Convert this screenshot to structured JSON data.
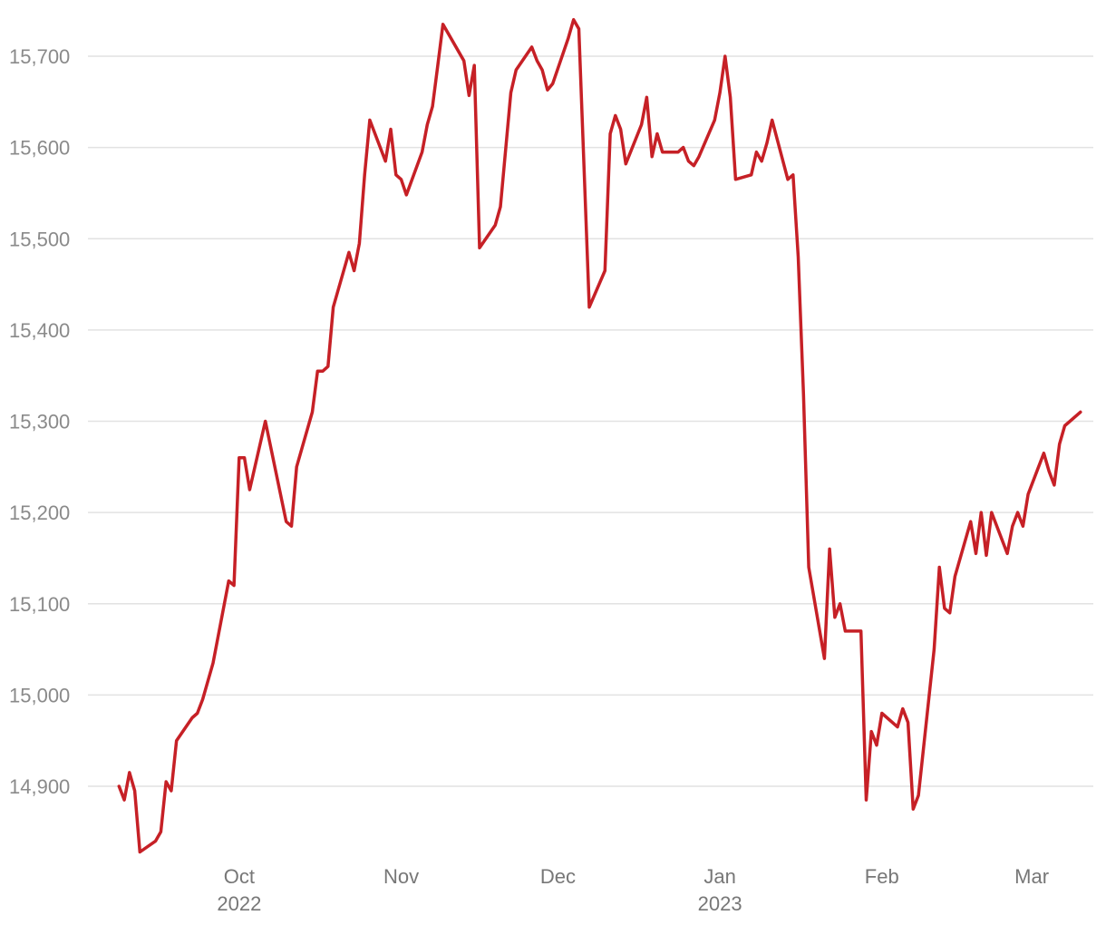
{
  "chart_data": {
    "type": "line",
    "title": "",
    "xlabel": "",
    "ylabel": "",
    "ylim": [
      14820,
      15745
    ],
    "xlim": [
      "2022-09-05",
      "2023-03-10"
    ],
    "grid": "horizontal",
    "legend": "none",
    "y_ticks": [
      "14,900",
      "15,000",
      "15,100",
      "15,200",
      "15,300",
      "15,400",
      "15,500",
      "15,600",
      "15,700"
    ],
    "y_tick_values": [
      14900,
      15000,
      15100,
      15200,
      15300,
      15400,
      15500,
      15600,
      15700
    ],
    "x_ticks": [
      {
        "date": "2022-10-01",
        "month": "Oct",
        "year": "2022"
      },
      {
        "date": "2022-11-01",
        "month": "Nov",
        "year": ""
      },
      {
        "date": "2022-12-01",
        "month": "Dec",
        "year": ""
      },
      {
        "date": "2023-01-01",
        "month": "Jan",
        "year": "2023"
      },
      {
        "date": "2023-02-01",
        "month": "Feb",
        "year": ""
      },
      {
        "date": "2023-03-01",
        "month": "Mar",
        "year": ""
      }
    ],
    "series": [
      {
        "color": "#c62026",
        "points": [
          [
            "2022-09-08",
            14900
          ],
          [
            "2022-09-09",
            14885
          ],
          [
            "2022-09-10",
            14915
          ],
          [
            "2022-09-11",
            14895
          ],
          [
            "2022-09-12",
            14828
          ],
          [
            "2022-09-15",
            14840
          ],
          [
            "2022-09-16",
            14850
          ],
          [
            "2022-09-17",
            14905
          ],
          [
            "2022-09-18",
            14895
          ],
          [
            "2022-09-19",
            14950
          ],
          [
            "2022-09-22",
            14975
          ],
          [
            "2022-09-23",
            14980
          ],
          [
            "2022-09-24",
            14995
          ],
          [
            "2022-09-26",
            15035
          ],
          [
            "2022-09-29",
            15125
          ],
          [
            "2022-09-30",
            15120
          ],
          [
            "2022-10-01",
            15260
          ],
          [
            "2022-10-02",
            15260
          ],
          [
            "2022-10-03",
            15225
          ],
          [
            "2022-10-06",
            15300
          ],
          [
            "2022-10-10",
            15190
          ],
          [
            "2022-10-11",
            15185
          ],
          [
            "2022-10-12",
            15250
          ],
          [
            "2022-10-15",
            15310
          ],
          [
            "2022-10-16",
            15355
          ],
          [
            "2022-10-17",
            15355
          ],
          [
            "2022-10-18",
            15360
          ],
          [
            "2022-10-19",
            15425
          ],
          [
            "2022-10-22",
            15485
          ],
          [
            "2022-10-23",
            15465
          ],
          [
            "2022-10-24",
            15495
          ],
          [
            "2022-10-25",
            15570
          ],
          [
            "2022-10-26",
            15630
          ],
          [
            "2022-10-29",
            15585
          ],
          [
            "2022-10-30",
            15620
          ],
          [
            "2022-10-31",
            15570
          ],
          [
            "2022-11-01",
            15565
          ],
          [
            "2022-11-02",
            15548
          ],
          [
            "2022-11-05",
            15595
          ],
          [
            "2022-11-06",
            15625
          ],
          [
            "2022-11-07",
            15645
          ],
          [
            "2022-11-08",
            15690
          ],
          [
            "2022-11-09",
            15735
          ],
          [
            "2022-11-13",
            15695
          ],
          [
            "2022-11-14",
            15657
          ],
          [
            "2022-11-15",
            15690
          ],
          [
            "2022-11-16",
            15490
          ],
          [
            "2022-11-19",
            15515
          ],
          [
            "2022-11-20",
            15535
          ],
          [
            "2022-11-22",
            15660
          ],
          [
            "2022-11-23",
            15685
          ],
          [
            "2022-11-26",
            15710
          ],
          [
            "2022-11-27",
            15695
          ],
          [
            "2022-11-28",
            15685
          ],
          [
            "2022-11-29",
            15663
          ],
          [
            "2022-11-30",
            15670
          ],
          [
            "2022-12-03",
            15720
          ],
          [
            "2022-12-04",
            15740
          ],
          [
            "2022-12-05",
            15730
          ],
          [
            "2022-12-07",
            15425
          ],
          [
            "2022-12-10",
            15465
          ],
          [
            "2022-12-11",
            15615
          ],
          [
            "2022-12-12",
            15635
          ],
          [
            "2022-12-13",
            15620
          ],
          [
            "2022-12-14",
            15582
          ],
          [
            "2022-12-17",
            15625
          ],
          [
            "2022-12-18",
            15655
          ],
          [
            "2022-12-19",
            15590
          ],
          [
            "2022-12-20",
            15615
          ],
          [
            "2022-12-21",
            15595
          ],
          [
            "2022-12-24",
            15595
          ],
          [
            "2022-12-25",
            15600
          ],
          [
            "2022-12-26",
            15585
          ],
          [
            "2022-12-27",
            15580
          ],
          [
            "2022-12-28",
            15590
          ],
          [
            "2022-12-31",
            15630
          ],
          [
            "2023-01-01",
            15660
          ],
          [
            "2023-01-02",
            15700
          ],
          [
            "2023-01-03",
            15655
          ],
          [
            "2023-01-04",
            15565
          ],
          [
            "2023-01-07",
            15570
          ],
          [
            "2023-01-08",
            15595
          ],
          [
            "2023-01-09",
            15585
          ],
          [
            "2023-01-10",
            15605
          ],
          [
            "2023-01-11",
            15630
          ],
          [
            "2023-01-14",
            15565
          ],
          [
            "2023-01-15",
            15570
          ],
          [
            "2023-01-16",
            15480
          ],
          [
            "2023-01-17",
            15330
          ],
          [
            "2023-01-18",
            15140
          ],
          [
            "2023-01-21",
            15040
          ],
          [
            "2023-01-22",
            15160
          ],
          [
            "2023-01-23",
            15085
          ],
          [
            "2023-01-24",
            15100
          ],
          [
            "2023-01-25",
            15070
          ],
          [
            "2023-01-28",
            15070
          ],
          [
            "2023-01-29",
            14885
          ],
          [
            "2023-01-30",
            14960
          ],
          [
            "2023-01-31",
            14945
          ],
          [
            "2023-02-01",
            14980
          ],
          [
            "2023-02-04",
            14965
          ],
          [
            "2023-02-05",
            14985
          ],
          [
            "2023-02-06",
            14970
          ],
          [
            "2023-02-07",
            14875
          ],
          [
            "2023-02-08",
            14890
          ],
          [
            "2023-02-11",
            15050
          ],
          [
            "2023-02-12",
            15140
          ],
          [
            "2023-02-13",
            15095
          ],
          [
            "2023-02-14",
            15090
          ],
          [
            "2023-02-15",
            15130
          ],
          [
            "2023-02-18",
            15190
          ],
          [
            "2023-02-19",
            15155
          ],
          [
            "2023-02-20",
            15200
          ],
          [
            "2023-02-21",
            15153
          ],
          [
            "2023-02-22",
            15200
          ],
          [
            "2023-02-25",
            15155
          ],
          [
            "2023-02-26",
            15185
          ],
          [
            "2023-02-27",
            15200
          ],
          [
            "2023-02-28",
            15185
          ],
          [
            "2023-03-01",
            15220
          ],
          [
            "2023-03-04",
            15265
          ],
          [
            "2023-03-05",
            15245
          ],
          [
            "2023-03-06",
            15230
          ],
          [
            "2023-03-07",
            15275
          ],
          [
            "2023-03-08",
            15295
          ],
          [
            "2023-03-11",
            15310
          ]
        ]
      }
    ]
  }
}
